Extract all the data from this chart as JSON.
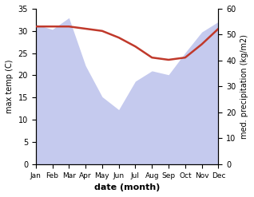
{
  "months": [
    "Jan",
    "Feb",
    "Mar",
    "Apr",
    "May",
    "Jun",
    "Jul",
    "Aug",
    "Sep",
    "Oct",
    "Nov",
    "Dec"
  ],
  "temperature": [
    31.0,
    31.0,
    31.0,
    30.5,
    30.0,
    28.5,
    26.5,
    24.0,
    23.5,
    24.0,
    27.0,
    30.5
  ],
  "precipitation": [
    54.0,
    52.0,
    56.5,
    38.0,
    26.0,
    21.0,
    32.0,
    36.0,
    34.5,
    43.0,
    51.0,
    55.0
  ],
  "temp_color": "#c0392b",
  "precip_fill_color": "#c5caee",
  "temp_ylim": [
    0,
    35
  ],
  "precip_ylim": [
    0,
    60
  ],
  "temp_yticks": [
    0,
    5,
    10,
    15,
    20,
    25,
    30,
    35
  ],
  "precip_yticks": [
    0,
    10,
    20,
    30,
    40,
    50,
    60
  ],
  "xlabel": "date (month)",
  "ylabel_left": "max temp (C)",
  "ylabel_right": "med. precipitation (kg/m2)",
  "background_color": "#ffffff"
}
